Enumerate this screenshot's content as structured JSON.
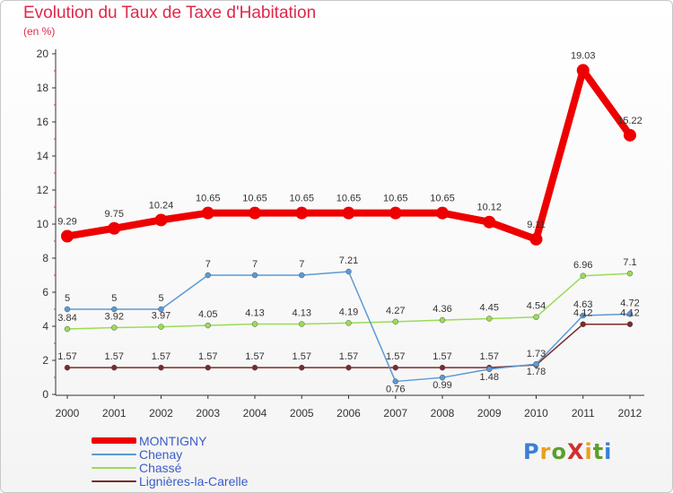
{
  "title": "Evolution du Taux de Taxe d'Habitation",
  "subtitle": "(en %)",
  "logo": {
    "text": "ProXiti",
    "letter_colors": [
      "#3a7fd5",
      "#e8a020",
      "#5aa02c",
      "#d03030",
      "#e8a020",
      "#5aa02c",
      "#3a7fd5"
    ]
  },
  "chart_data": {
    "type": "line",
    "title": "Evolution du Taux de Taxe d'Habitation",
    "ylabel": "(en %)",
    "xlabel": "",
    "ylim": [
      0,
      20
    ],
    "yticks": [
      0,
      2,
      4,
      6,
      8,
      10,
      12,
      14,
      16,
      18,
      20
    ],
    "grid": false,
    "legend_position": "bottom-left",
    "categories": [
      "2000",
      "2001",
      "2002",
      "2003",
      "2004",
      "2005",
      "2006",
      "2007",
      "2008",
      "2009",
      "2010",
      "2011",
      "2012"
    ],
    "series": [
      {
        "name": "MONTIGNY",
        "color": "#ee0000",
        "emphasis": true,
        "values": [
          9.29,
          9.75,
          10.24,
          10.65,
          10.65,
          10.65,
          10.65,
          10.65,
          10.65,
          10.12,
          9.11,
          19.03,
          15.22
        ],
        "labels": [
          "9.29",
          "9.75",
          "10.24",
          "10.65",
          "10.65",
          "10.65",
          "10.65",
          "10.65",
          "10.65",
          "10.12",
          "9.11",
          "19.03",
          "15.22"
        ]
      },
      {
        "name": "Chenay",
        "color": "#5b9ad5",
        "emphasis": false,
        "values": [
          5,
          5,
          5,
          7,
          7,
          7,
          7.21,
          0.76,
          0.99,
          1.48,
          1.78,
          4.63,
          4.72
        ],
        "labels": [
          "5",
          "5",
          "5",
          "7",
          "7",
          "7",
          "7.21",
          "0.76",
          "0.99",
          "1.48",
          "1.78",
          "4.63",
          "4.72"
        ]
      },
      {
        "name": "Chassé",
        "color": "#99dd55",
        "emphasis": false,
        "values": [
          3.84,
          3.92,
          3.97,
          4.05,
          4.13,
          4.13,
          4.19,
          4.27,
          4.36,
          4.45,
          4.54,
          6.96,
          7.1
        ],
        "labels": [
          "3.84",
          "3.92",
          "3.97",
          "4.05",
          "4.13",
          "4.13",
          "4.19",
          "4.27",
          "4.36",
          "4.45",
          "4.54",
          "6.96",
          "7.1"
        ]
      },
      {
        "name": "Lignières-la-Carelle",
        "color": "#7a2a2a",
        "emphasis": false,
        "values": [
          1.57,
          1.57,
          1.57,
          1.57,
          1.57,
          1.57,
          1.57,
          1.57,
          1.57,
          1.57,
          1.73,
          4.12,
          4.12
        ],
        "labels": [
          "1.57",
          "1.57",
          "1.57",
          "1.57",
          "1.57",
          "1.57",
          "1.57",
          "1.57",
          "1.57",
          "1.57",
          "1.73",
          "4.12",
          "4.12"
        ]
      }
    ]
  }
}
